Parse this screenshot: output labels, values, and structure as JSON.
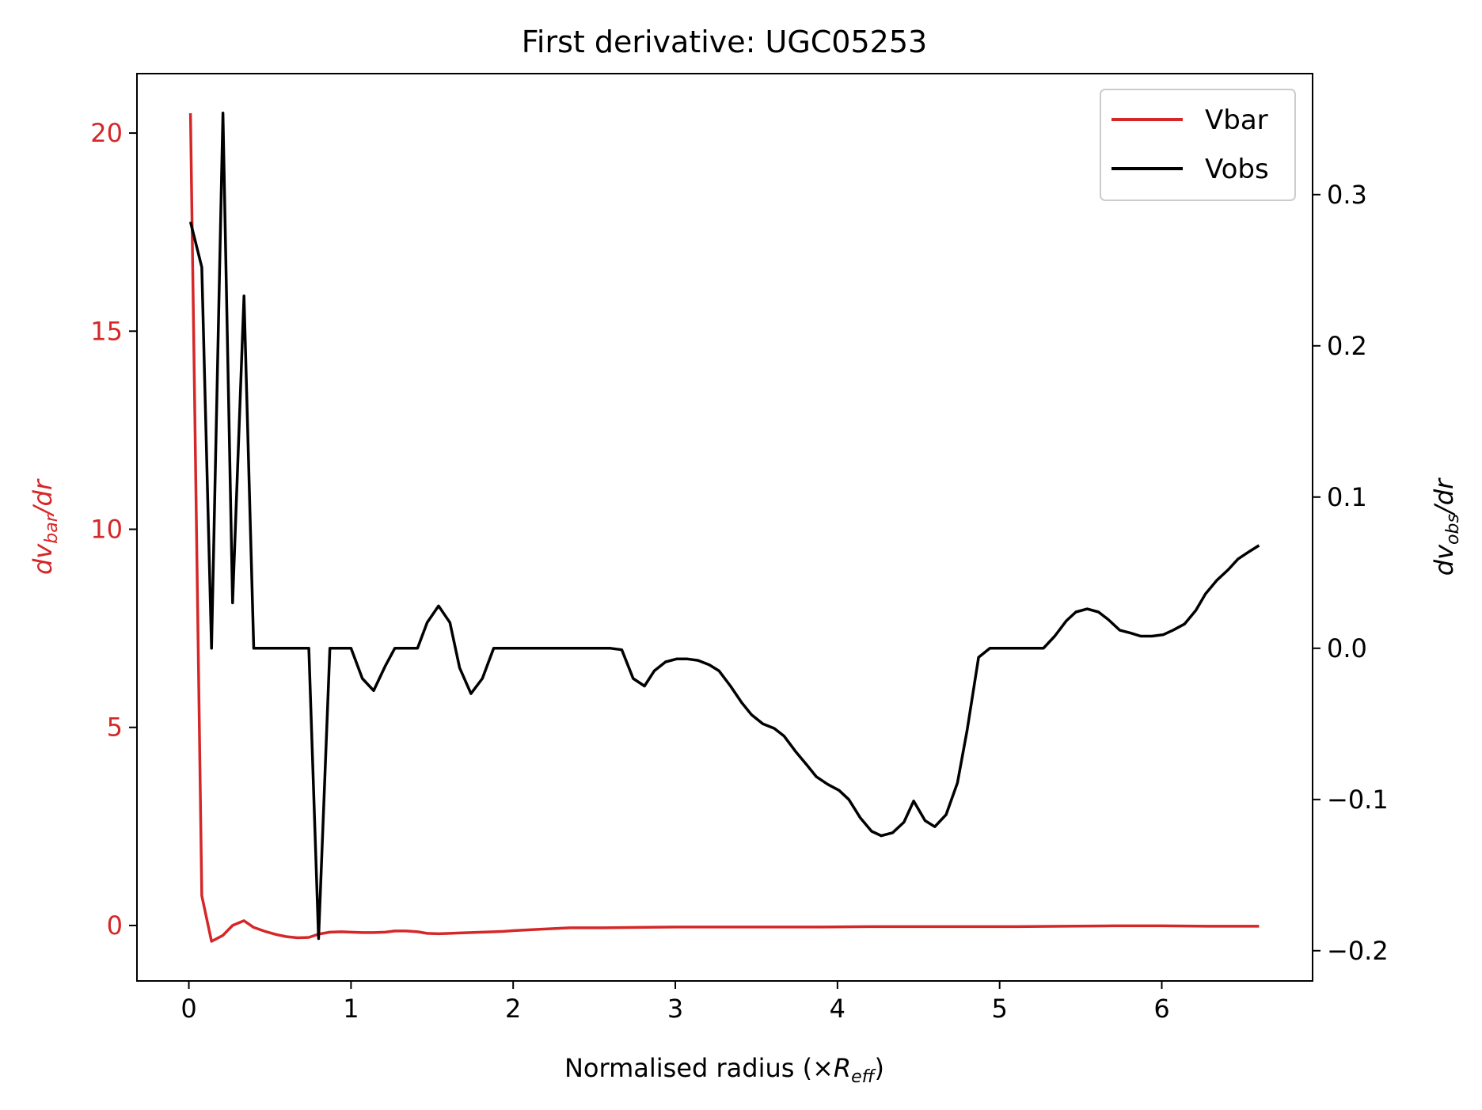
{
  "chart_data": {
    "type": "line",
    "title": "First derivative: UGC05253",
    "xlabel": {
      "main": "Normalised radius (×",
      "italic": "R",
      "sub": "eff",
      "close": ")"
    },
    "ylabel_left": {
      "italic": "dv",
      "sub": "bar",
      "rest": "/dr"
    },
    "ylabel_right": {
      "italic": "dv",
      "sub": "obs",
      "rest": "/dr"
    },
    "xlim": [
      -0.32,
      6.93
    ],
    "ylim_left": [
      -1.4,
      21.5
    ],
    "ylim_right": [
      -0.22,
      0.38
    ],
    "x_ticks": [
      "0",
      "1",
      "2",
      "3",
      "4",
      "5",
      "6"
    ],
    "y_left_ticks": [
      "0",
      "5",
      "10",
      "15",
      "20"
    ],
    "y_right_ticks": [
      "−0.2",
      "−0.1",
      "0.0",
      "0.1",
      "0.2",
      "0.3"
    ],
    "legend_position": "upper right",
    "grid": false,
    "colors": {
      "vbar": "#d62728",
      "vobs": "#000000",
      "left_axis": "#d62728"
    },
    "series": [
      {
        "name": "Vbar",
        "axis": "left",
        "x": [
          0.01,
          0.08,
          0.14,
          0.21,
          0.27,
          0.34,
          0.4,
          0.47,
          0.54,
          0.6,
          0.67,
          0.74,
          0.8,
          0.87,
          0.94,
          1.0,
          1.07,
          1.14,
          1.21,
          1.27,
          1.34,
          1.41,
          1.47,
          1.54,
          1.61,
          1.67,
          1.74,
          1.81,
          1.88,
          1.94,
          2.01,
          2.15,
          2.35,
          2.55,
          2.75,
          3.0,
          3.3,
          3.6,
          3.9,
          4.2,
          4.5,
          4.8,
          5.1,
          5.4,
          5.7,
          6.0,
          6.3,
          6.6
        ],
        "y": [
          20.5,
          0.75,
          -0.4,
          -0.25,
          0.0,
          0.12,
          -0.05,
          -0.15,
          -0.23,
          -0.28,
          -0.31,
          -0.3,
          -0.22,
          -0.17,
          -0.16,
          -0.17,
          -0.18,
          -0.18,
          -0.17,
          -0.14,
          -0.14,
          -0.16,
          -0.2,
          -0.21,
          -0.2,
          -0.19,
          -0.18,
          -0.17,
          -0.16,
          -0.15,
          -0.13,
          -0.1,
          -0.06,
          -0.06,
          -0.05,
          -0.04,
          -0.04,
          -0.04,
          -0.04,
          -0.03,
          -0.03,
          -0.03,
          -0.03,
          -0.02,
          -0.01,
          -0.01,
          -0.02,
          -0.02
        ]
      },
      {
        "name": "Vobs",
        "axis": "right",
        "x": [
          0.01,
          0.08,
          0.14,
          0.21,
          0.27,
          0.34,
          0.4,
          0.47,
          0.54,
          0.6,
          0.67,
          0.74,
          0.8,
          0.87,
          0.94,
          1.0,
          1.07,
          1.14,
          1.21,
          1.27,
          1.34,
          1.41,
          1.47,
          1.54,
          1.61,
          1.67,
          1.74,
          1.81,
          1.88,
          1.94,
          2.01,
          2.1,
          2.2,
          2.3,
          2.4,
          2.5,
          2.6,
          2.67,
          2.74,
          2.81,
          2.87,
          2.94,
          3.01,
          3.07,
          3.14,
          3.21,
          3.27,
          3.34,
          3.41,
          3.47,
          3.54,
          3.61,
          3.67,
          3.74,
          3.81,
          3.87,
          3.94,
          4.01,
          4.07,
          4.14,
          4.21,
          4.27,
          4.34,
          4.41,
          4.47,
          4.54,
          4.6,
          4.67,
          4.74,
          4.8,
          4.87,
          4.94,
          5.01,
          5.07,
          5.14,
          5.21,
          5.27,
          5.34,
          5.41,
          5.47,
          5.54,
          5.61,
          5.67,
          5.74,
          5.81,
          5.87,
          5.94,
          6.01,
          6.07,
          6.14,
          6.21,
          6.27,
          6.34,
          6.41,
          6.47,
          6.54,
          6.6
        ],
        "y": [
          0.282,
          0.252,
          0.0,
          0.354,
          0.03,
          0.233,
          0.0,
          0.0,
          0.0,
          0.0,
          0.0,
          0.0,
          -0.192,
          0.0,
          0.0,
          0.0,
          -0.02,
          -0.028,
          -0.012,
          0.0,
          0.0,
          0.0,
          0.017,
          0.028,
          0.017,
          -0.013,
          -0.03,
          -0.02,
          0.0,
          0.0,
          0.0,
          0.0,
          0.0,
          0.0,
          0.0,
          0.0,
          0.0,
          -0.001,
          -0.02,
          -0.025,
          -0.015,
          -0.009,
          -0.007,
          -0.007,
          -0.008,
          -0.011,
          -0.015,
          -0.025,
          -0.036,
          -0.044,
          -0.05,
          -0.053,
          -0.058,
          -0.068,
          -0.077,
          -0.085,
          -0.09,
          -0.094,
          -0.1,
          -0.112,
          -0.121,
          -0.124,
          -0.122,
          -0.115,
          -0.101,
          -0.114,
          -0.118,
          -0.11,
          -0.089,
          -0.054,
          -0.006,
          0.0,
          0.0,
          0.0,
          0.0,
          0.0,
          0.0,
          0.008,
          0.018,
          0.024,
          0.026,
          0.024,
          0.019,
          0.012,
          0.01,
          0.008,
          0.008,
          0.009,
          0.012,
          0.016,
          0.025,
          0.036,
          0.045,
          0.052,
          0.059,
          0.064,
          0.068
        ]
      }
    ]
  }
}
